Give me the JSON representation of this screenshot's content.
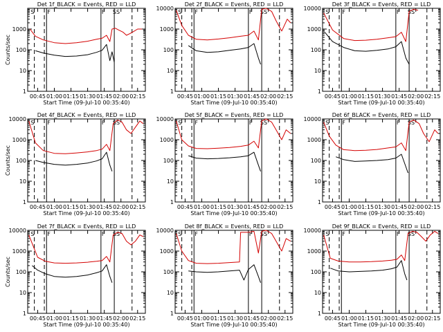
{
  "chart_data": [
    {
      "type": "line",
      "title": "Det 1f_BLACK = Events, RED = LLD",
      "xlabel": "Start Time (09-Jul-10 00:35:40)",
      "ylabel": "Counts/sec",
      "yscale": "log",
      "ylim": [
        1,
        10000
      ],
      "xlim": [
        "00:36",
        "02:22"
      ],
      "x_ticks": [
        "00:45",
        "01:00",
        "01:15",
        "01:30",
        "01:45",
        "02:00",
        "02:15"
      ],
      "y_ticks": [
        "1",
        "10",
        "100",
        "1000"
      ],
      "markers": [
        "S",
        "F",
        "F",
        "SS"
      ],
      "series": [
        {
          "name": "Events",
          "color": "#000000",
          "x": [
            "00:43",
            "00:50",
            "01:00",
            "01:10",
            "01:20",
            "01:30",
            "01:38",
            "01:43",
            "01:47",
            "01:50",
            "01:52",
            "01:54"
          ],
          "values": [
            90,
            70,
            55,
            48,
            50,
            58,
            75,
            95,
            180,
            30,
            80,
            25
          ]
        },
        {
          "name": "LLD",
          "color": "#d40000",
          "x": [
            "00:38",
            "00:43",
            "00:50",
            "01:00",
            "01:10",
            "01:20",
            "01:30",
            "01:38",
            "01:43",
            "01:47",
            "01:50",
            "01:52",
            "01:55",
            "01:58",
            "02:02",
            "02:05",
            "02:08",
            "02:12",
            "02:15",
            "02:19"
          ],
          "values": [
            1000,
            450,
            300,
            220,
            200,
            220,
            260,
            320,
            360,
            500,
            250,
            1000,
            1100,
            900,
            700,
            500,
            600,
            800,
            1000,
            1000
          ]
        }
      ]
    },
    {
      "type": "line",
      "title": "Det 2f_BLACK = Events, RED = LLD",
      "xlabel": "Start Time (09-Jul-10 00:35:40)",
      "ylabel": "",
      "yscale": "log",
      "ylim": [
        1,
        10000
      ],
      "xlim": [
        "00:36",
        "02:22"
      ],
      "x_ticks": [
        "00:45",
        "01:00",
        "01:15",
        "01:30",
        "01:45",
        "02:00",
        "02:15"
      ],
      "y_ticks": [
        "1",
        "10",
        "100",
        "1000",
        "10000"
      ],
      "markers": [
        "S",
        "F",
        "F",
        "SS"
      ],
      "series": [
        {
          "name": "Events",
          "color": "#000000",
          "x": [
            "00:48",
            "00:55",
            "01:05",
            "01:15",
            "01:25",
            "01:35",
            "01:42",
            "01:47",
            "01:51",
            "01:53"
          ],
          "values": [
            160,
            90,
            75,
            80,
            95,
            110,
            130,
            200,
            40,
            20
          ]
        },
        {
          "name": "LLD",
          "color": "#d40000",
          "x": [
            "00:37",
            "00:42",
            "00:48",
            "00:55",
            "01:05",
            "01:15",
            "01:25",
            "01:35",
            "01:42",
            "01:47",
            "01:51",
            "01:54",
            "01:58",
            "02:03",
            "02:07",
            "02:12",
            "02:17",
            "02:20"
          ],
          "values": [
            8000,
            1500,
            500,
            320,
            300,
            330,
            380,
            450,
            500,
            800,
            300,
            9000,
            10000,
            7000,
            2500,
            800,
            3000,
            2000
          ]
        }
      ]
    },
    {
      "type": "line",
      "title": "Det 3f_BLACK = Events, RED = LLD",
      "xlabel": "Start Time (09-Jul-10 00:35:40)",
      "ylabel": "",
      "yscale": "log",
      "ylim": [
        1,
        10000
      ],
      "xlim": [
        "00:36",
        "02:22"
      ],
      "x_ticks": [
        "00:45",
        "01:00",
        "01:15",
        "01:30",
        "01:45",
        "02:00",
        "02:15"
      ],
      "y_ticks": [
        "1",
        "10",
        "100",
        "1000",
        "10000"
      ],
      "markers": [
        "S",
        "F",
        "F",
        "SS"
      ],
      "series": [
        {
          "name": "Events",
          "color": "#000000",
          "x": [
            "00:38",
            "00:45",
            "00:55",
            "01:05",
            "01:15",
            "01:25",
            "01:35",
            "01:42",
            "01:47",
            "01:51",
            "01:54"
          ],
          "values": [
            700,
            250,
            130,
            90,
            85,
            95,
            110,
            140,
            250,
            40,
            20
          ]
        },
        {
          "name": "LLD",
          "color": "#d40000",
          "x": [
            "00:37",
            "00:45",
            "00:55",
            "01:05",
            "01:15",
            "01:25",
            "01:35",
            "01:42",
            "01:47",
            "01:51",
            "01:54",
            "01:58",
            "02:02"
          ],
          "values": [
            6000,
            900,
            350,
            280,
            290,
            320,
            380,
            430,
            700,
            250,
            7000,
            9000,
            8000
          ]
        }
      ]
    },
    {
      "type": "line",
      "title": "Det 4f_BLACK = Events, RED = LLD",
      "xlabel": "Start Time (09-Jul-10 00:35:40)",
      "ylabel": "Counts/sec",
      "yscale": "log",
      "ylim": [
        1,
        10000
      ],
      "xlim": [
        "00:36",
        "02:22"
      ],
      "x_ticks": [
        "00:45",
        "01:00",
        "01:15",
        "01:30",
        "01:45",
        "02:00",
        "02:15"
      ],
      "y_ticks": [
        "1",
        "10",
        "100",
        "1000",
        "10000"
      ],
      "markers": [
        "S",
        "F",
        "F",
        "SS"
      ],
      "series": [
        {
          "name": "Events",
          "color": "#000000",
          "x": [
            "00:43",
            "00:50",
            "01:00",
            "01:10",
            "01:20",
            "01:30",
            "01:38",
            "01:43",
            "01:47",
            "01:50",
            "01:52"
          ],
          "values": [
            100,
            80,
            65,
            60,
            65,
            75,
            95,
            120,
            250,
            60,
            30
          ]
        },
        {
          "name": "LLD",
          "color": "#d40000",
          "x": [
            "00:37",
            "00:43",
            "00:50",
            "01:00",
            "01:10",
            "01:20",
            "01:30",
            "01:38",
            "01:43",
            "01:47",
            "01:50",
            "01:53",
            "01:57",
            "02:01",
            "02:05",
            "02:09",
            "02:13",
            "02:17",
            "02:20"
          ],
          "values": [
            8000,
            700,
            300,
            220,
            210,
            230,
            260,
            300,
            350,
            600,
            300,
            6000,
            9000,
            7000,
            3000,
            2000,
            4000,
            8000,
            6000
          ]
        }
      ]
    },
    {
      "type": "line",
      "title": "Det 5f_BLACK = Events, RED = LLD",
      "xlabel": "Start Time (09-Jul-10 00:35:40)",
      "ylabel": "",
      "yscale": "log",
      "ylim": [
        1,
        10000
      ],
      "xlim": [
        "00:36",
        "02:22"
      ],
      "x_ticks": [
        "00:45",
        "01:00",
        "01:15",
        "01:30",
        "01:45",
        "02:00",
        "02:15"
      ],
      "y_ticks": [
        "1",
        "10",
        "100",
        "1000",
        "10000"
      ],
      "markers": [
        "S",
        "F",
        "F",
        "SS"
      ],
      "series": [
        {
          "name": "Events",
          "color": "#000000",
          "x": [
            "00:48",
            "00:55",
            "01:05",
            "01:15",
            "01:25",
            "01:35",
            "01:42",
            "01:47",
            "01:51",
            "01:53"
          ],
          "values": [
            170,
            130,
            120,
            125,
            135,
            150,
            170,
            250,
            60,
            30
          ]
        },
        {
          "name": "LLD",
          "color": "#d40000",
          "x": [
            "00:37",
            "00:42",
            "00:48",
            "00:55",
            "01:05",
            "01:15",
            "01:25",
            "01:35",
            "01:42",
            "01:47",
            "01:51",
            "01:54",
            "01:58",
            "02:03",
            "02:07",
            "02:12",
            "02:16",
            "02:20"
          ],
          "values": [
            8000,
            1000,
            500,
            380,
            370,
            390,
            420,
            480,
            550,
            850,
            400,
            8000,
            10000,
            7000,
            3000,
            1000,
            3000,
            2000
          ]
        }
      ]
    },
    {
      "type": "line",
      "title": "Det 6f_BLACK = Events, RED = LLD",
      "xlabel": "Start Time (09-Jul-10 00:35:40)",
      "ylabel": "",
      "yscale": "log",
      "ylim": [
        1,
        10000
      ],
      "xlim": [
        "00:36",
        "02:22"
      ],
      "x_ticks": [
        "00:45",
        "01:00",
        "01:15",
        "01:30",
        "01:45",
        "02:00",
        "02:15"
      ],
      "y_ticks": [
        "1",
        "10",
        "100",
        "1000",
        "10000"
      ],
      "markers": [
        "S",
        "F",
        "F",
        "SS"
      ],
      "series": [
        {
          "name": "Events",
          "color": "#000000",
          "x": [
            "00:48",
            "00:55",
            "01:05",
            "01:15",
            "01:25",
            "01:35",
            "01:42",
            "01:47",
            "01:51",
            "01:53"
          ],
          "values": [
            150,
            110,
            90,
            95,
            100,
            110,
            130,
            200,
            50,
            25
          ]
        },
        {
          "name": "LLD",
          "color": "#d40000",
          "x": [
            "00:37",
            "00:42",
            "00:48",
            "00:55",
            "01:05",
            "01:15",
            "01:25",
            "01:35",
            "01:42",
            "01:47",
            "01:51",
            "01:54",
            "01:58",
            "02:03",
            "02:07",
            "02:12",
            "02:17",
            "02:20"
          ],
          "values": [
            7000,
            1500,
            550,
            330,
            300,
            310,
            340,
            400,
            450,
            700,
            300,
            7000,
            9000,
            6000,
            2000,
            800,
            3000,
            2000
          ]
        }
      ]
    },
    {
      "type": "line",
      "title": "Det 7f_BLACK = Events, RED = LLD",
      "xlabel": "Start Time (09-Jul-10 00:35:40)",
      "ylabel": "Counts/sec",
      "yscale": "log",
      "ylim": [
        1,
        10000
      ],
      "xlim": [
        "00:36",
        "02:22"
      ],
      "x_ticks": [
        "00:45",
        "01:00",
        "01:15",
        "01:30",
        "01:45",
        "02:00",
        "02:15"
      ],
      "y_ticks": [
        "1",
        "10",
        "100",
        "1000",
        "10000"
      ],
      "markers": [
        "S",
        "F",
        "F",
        "SS"
      ],
      "series": [
        {
          "name": "Events",
          "color": "#000000",
          "x": [
            "00:40",
            "00:45",
            "00:52",
            "01:00",
            "01:10",
            "01:20",
            "01:30",
            "01:38",
            "01:43",
            "01:47",
            "01:50",
            "01:52"
          ],
          "values": [
            200,
            120,
            80,
            60,
            55,
            60,
            70,
            90,
            110,
            220,
            60,
            30
          ]
        },
        {
          "name": "LLD",
          "color": "#d40000",
          "x": [
            "00:37",
            "00:45",
            "00:52",
            "01:00",
            "01:10",
            "01:20",
            "01:30",
            "01:38",
            "01:43",
            "01:47",
            "01:50",
            "01:53",
            "01:57",
            "02:01",
            "02:05",
            "02:09",
            "02:13",
            "02:17",
            "02:20"
          ],
          "values": [
            6000,
            500,
            320,
            270,
            260,
            270,
            290,
            320,
            350,
            550,
            300,
            6000,
            8000,
            7000,
            3000,
            2000,
            3000,
            6000,
            5000
          ]
        }
      ]
    },
    {
      "type": "line",
      "title": "Det 8f_BLACK = Events, RED = LLD",
      "xlabel": "Start Time (09-Jul-10 00:35:40)",
      "ylabel": "",
      "yscale": "log",
      "ylim": [
        1,
        10000
      ],
      "xlim": [
        "00:36",
        "02:22"
      ],
      "x_ticks": [
        "00:45",
        "01:00",
        "01:15",
        "01:30",
        "01:45",
        "02:00",
        "02:15"
      ],
      "y_ticks": [
        "1",
        "10",
        "100",
        "1000",
        "10000"
      ],
      "markers": [
        "S",
        "F",
        "F",
        "SS"
      ],
      "series": [
        {
          "name": "Events",
          "color": "#000000",
          "x": [
            "00:48",
            "00:55",
            "01:05",
            "01:15",
            "01:25",
            "01:34",
            "01:38",
            "01:42",
            "01:47",
            "01:51",
            "01:53"
          ],
          "values": [
            110,
            100,
            95,
            100,
            110,
            120,
            40,
            130,
            220,
            60,
            30
          ]
        },
        {
          "name": "LLD",
          "color": "#d40000",
          "x": [
            "00:37",
            "00:42",
            "00:48",
            "00:55",
            "01:05",
            "01:15",
            "01:25",
            "01:34",
            "01:35",
            "01:42",
            "01:47",
            "01:51",
            "01:54",
            "01:58",
            "02:03",
            "02:07",
            "02:12",
            "02:16",
            "02:20"
          ],
          "values": [
            7000,
            1000,
            350,
            260,
            250,
            260,
            280,
            300,
            8000,
            8000,
            9000,
            800,
            9000,
            10000,
            7000,
            3000,
            1000,
            4000,
            3000
          ]
        }
      ]
    },
    {
      "type": "line",
      "title": "Det 9f_BLACK = Events, RED = LLD",
      "xlabel": "Start Time (09-Jul-10 00:35:40)",
      "ylabel": "",
      "yscale": "log",
      "ylim": [
        1,
        10000
      ],
      "xlim": [
        "00:36",
        "02:22"
      ],
      "x_ticks": [
        "00:45",
        "01:00",
        "01:15",
        "01:30",
        "01:45",
        "02:00",
        "02:15"
      ],
      "y_ticks": [
        "1",
        "10",
        "100",
        "1000",
        "10000"
      ],
      "markers": [
        "S",
        "F",
        "F",
        "SS"
      ],
      "series": [
        {
          "name": "Events",
          "color": "#000000",
          "x": [
            "00:43",
            "00:50",
            "01:00",
            "01:10",
            "01:20",
            "01:30",
            "01:38",
            "01:43",
            "01:47",
            "01:50",
            "01:52"
          ],
          "values": [
            150,
            110,
            100,
            105,
            110,
            120,
            140,
            170,
            350,
            80,
            40
          ]
        },
        {
          "name": "LLD",
          "color": "#d40000",
          "x": [
            "00:37",
            "00:43",
            "00:50",
            "01:00",
            "01:10",
            "01:20",
            "01:30",
            "01:38",
            "01:43",
            "01:47",
            "01:50",
            "01:53",
            "01:57",
            "02:01",
            "02:05",
            "02:09",
            "02:13",
            "02:17",
            "02:20"
          ],
          "values": [
            6000,
            450,
            330,
            300,
            300,
            310,
            330,
            360,
            400,
            650,
            350,
            7000,
            9000,
            8000,
            5000,
            3000,
            6000,
            9000,
            7000
          ]
        }
      ]
    }
  ]
}
